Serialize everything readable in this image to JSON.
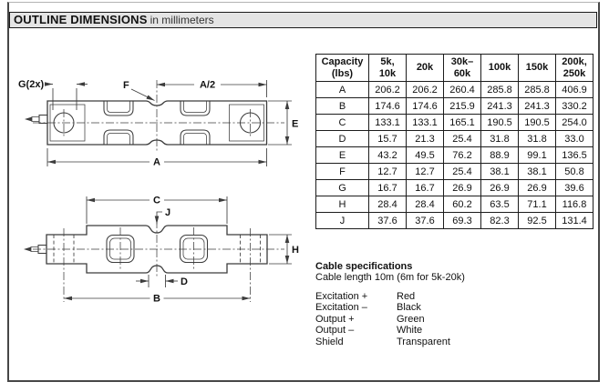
{
  "header": {
    "title": "OUTLINE DIMENSIONS",
    "subtitle": "in millimeters"
  },
  "drawing": {
    "labels": {
      "g": "G(2x)",
      "f": "F",
      "a_half": "A/2",
      "e": "E",
      "a": "A",
      "c": "C",
      "j": "J",
      "h": "H",
      "d": "D",
      "b": "B"
    }
  },
  "table": {
    "col_headers": [
      [
        "Capacity",
        "(lbs)"
      ],
      [
        "5k,",
        "10k"
      ],
      [
        "20k"
      ],
      [
        "30k–",
        "60k"
      ],
      [
        "100k"
      ],
      [
        "150k"
      ],
      [
        "200k,",
        "250k"
      ]
    ],
    "rows": [
      {
        "dim": "A",
        "values": [
          "206.2",
          "206.2",
          "260.4",
          "285.8",
          "285.8",
          "406.9"
        ]
      },
      {
        "dim": "B",
        "values": [
          "174.6",
          "174.6",
          "215.9",
          "241.3",
          "241.3",
          "330.2"
        ]
      },
      {
        "dim": "C",
        "values": [
          "133.1",
          "133.1",
          "165.1",
          "190.5",
          "190.5",
          "254.0"
        ]
      },
      {
        "dim": "D",
        "values": [
          "15.7",
          "21.3",
          "25.4",
          "31.8",
          "31.8",
          "33.0"
        ]
      },
      {
        "dim": "E",
        "values": [
          "43.2",
          "49.5",
          "76.2",
          "88.9",
          "99.1",
          "136.5"
        ]
      },
      {
        "dim": "F",
        "values": [
          "12.7",
          "12.7",
          "25.4",
          "38.1",
          "38.1",
          "50.8"
        ]
      },
      {
        "dim": "G",
        "values": [
          "16.7",
          "16.7",
          "26.9",
          "26.9",
          "26.9",
          "39.6"
        ]
      },
      {
        "dim": "H",
        "values": [
          "28.4",
          "28.4",
          "60.2",
          "63.5",
          "71.1",
          "116.8"
        ]
      },
      {
        "dim": "J",
        "values": [
          "37.6",
          "37.6",
          "69.3",
          "82.3",
          "92.5",
          "131.4"
        ]
      }
    ]
  },
  "cable": {
    "title": "Cable specifications",
    "length_note": "Cable length 10m (6m for 5k-20k)",
    "wires": [
      {
        "signal": "Excitation +",
        "color": "Red"
      },
      {
        "signal": "Excitation –",
        "color": "Black"
      },
      {
        "signal": "Output +",
        "color": "Green"
      },
      {
        "signal": "Output –",
        "color": "White"
      },
      {
        "signal": "Shield",
        "color": "Transparent"
      }
    ]
  },
  "colors": {
    "line": "#3c3c3c",
    "header_bar": "#e4e4e4",
    "frame_border": "#474747",
    "text": "#111111"
  }
}
